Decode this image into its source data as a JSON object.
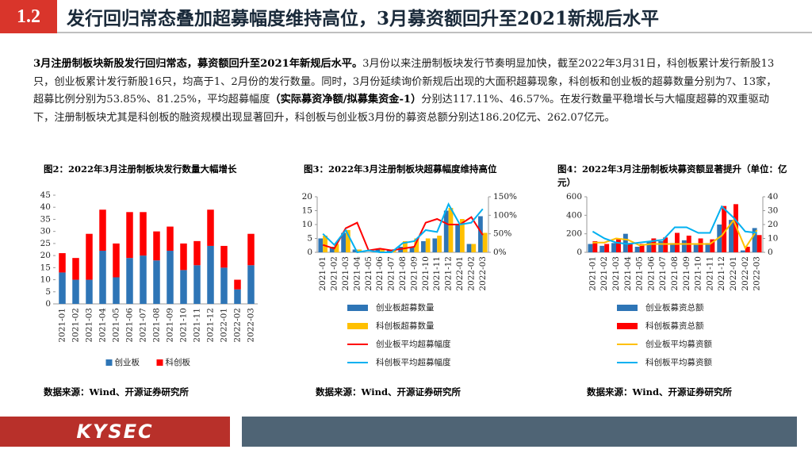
{
  "header": {
    "number": "1.2",
    "title": "发行回归常态叠加超募幅度维持高位，3月募资额回升至2021新规后水平"
  },
  "paragraph": [
    {
      "text": "3月注册制板块新股发行回归常态，募资额回升至2021年新规后水平。",
      "bold": true
    },
    {
      "text": "3月份以来注册制板块发行节奏明显加快，截至2022年3月31日，科创板累计发行新股13只，创业板累计发行新股16只，均高于1、2月份的发行数量。同时，3月份延续询价新规后出现的大面积超募现象，科创板和创业板的超募数量分别为7、13家，超募比例分别为53.85%、81.25%，平均超募幅度",
      "bold": false
    },
    {
      "text": "（实际募资净额/拟募集资金-1）",
      "bold": true
    },
    {
      "text": "分别达117.11%、46.57%。在发行数量平稳增长与大幅度超募的双重驱动下，注册制板块尤其是科创板的融资规模出现显著回升，科创板与创业板3月份的募资总额分别达186.20亿元、262.07亿元。",
      "bold": false
    }
  ],
  "chart_data": [
    {
      "type": "bar",
      "stacked": true,
      "title": "图2：2022年3月注册制板块发行数量大幅增长",
      "categories": [
        "2021-01",
        "2021-02",
        "2021-03",
        "2021-04",
        "2021-05",
        "2021-06",
        "2021-07",
        "2021-08",
        "2021-09",
        "2021-10",
        "2021-11",
        "2021-12",
        "2022-01",
        "2022-02",
        "2022-03"
      ],
      "series": [
        {
          "name": "创业板",
          "color": "#2e75b6",
          "type": "bar",
          "values": [
            13,
            10,
            10,
            22,
            11,
            19,
            20,
            18,
            22,
            14,
            16,
            24,
            15,
            6,
            16
          ]
        },
        {
          "name": "科创板",
          "color": "#ff0000",
          "type": "bar",
          "values": [
            8,
            9,
            19,
            17,
            14,
            19,
            18,
            12,
            10,
            11,
            10,
            15,
            9,
            4,
            13
          ]
        }
      ],
      "ylim": [
        0,
        45
      ],
      "yticks": [
        0,
        5,
        10,
        15,
        20,
        25,
        30,
        35,
        40,
        45
      ],
      "legend": "bottom",
      "source": "数据来源：Wind、开源证券研究所"
    },
    {
      "type": "combo",
      "title": "图3：2022年3月注册制板块超募幅度维持高位",
      "categories": [
        "2021-01",
        "2021-02",
        "2021-03",
        "2021-04",
        "2021-05",
        "2021-06",
        "2021-07",
        "2021-08",
        "2021-09",
        "2021-10",
        "2021-11",
        "2021-12",
        "2022-01",
        "2022-02",
        "2022-03"
      ],
      "series": [
        {
          "name": "创业板超募数量",
          "color": "#2e75b6",
          "type": "bar",
          "values": [
            5,
            2,
            7,
            1,
            0,
            1,
            1,
            2,
            2,
            4,
            5,
            15,
            10,
            3,
            13
          ]
        },
        {
          "name": "科创板超募数量",
          "color": "#ffc000",
          "type": "bar",
          "values": [
            6,
            3,
            8,
            1,
            0,
            1,
            1,
            4,
            5,
            5,
            6,
            16,
            12,
            3,
            7
          ]
        },
        {
          "name": "创业板平均超募幅度",
          "color": "#ff0000",
          "type": "line",
          "axis": "y2",
          "values": [
            20,
            10,
            65,
            80,
            5,
            10,
            5,
            10,
            15,
            80,
            90,
            75,
            75,
            95,
            46.57
          ]
        },
        {
          "name": "科创板平均超募幅度",
          "color": "#00b0f0",
          "type": "line",
          "axis": "y2",
          "values": [
            50,
            20,
            60,
            0,
            5,
            0,
            0,
            25,
            30,
            60,
            55,
            130,
            75,
            80,
            117.11
          ]
        }
      ],
      "ylim": [
        0,
        20
      ],
      "yticks": [
        0,
        5,
        10,
        15,
        20
      ],
      "y2lim": [
        0,
        150
      ],
      "y2ticks": [
        {
          "value": 0,
          "label": "0%"
        },
        {
          "value": 50,
          "label": "50%"
        },
        {
          "value": 100,
          "label": "100%"
        },
        {
          "value": 150,
          "label": "150%"
        }
      ],
      "legend": "bottom",
      "source": "数据来源：Wind、开源证券研究所"
    },
    {
      "type": "combo",
      "title": "图4：2022年3月注册制板块募资额显著提升（单位：亿元）",
      "categories": [
        "2021-01",
        "2021-02",
        "2021-03",
        "2021-04",
        "2021-05",
        "2021-06",
        "2021-07",
        "2021-08",
        "2021-09",
        "2021-10",
        "2021-11",
        "2021-12",
        "2022-01",
        "2022-02",
        "2022-03"
      ],
      "series": [
        {
          "name": "创业板募资总额",
          "color": "#2e75b6",
          "type": "bar",
          "values": [
            90,
            70,
            100,
            200,
            60,
            120,
            120,
            100,
            130,
            80,
            100,
            300,
            350,
            20,
            262.07
          ]
        },
        {
          "name": "科创板募资总额",
          "color": "#ff0000",
          "type": "bar",
          "values": [
            120,
            90,
            140,
            100,
            90,
            150,
            160,
            210,
            180,
            150,
            140,
            500,
            520,
            60,
            186.2
          ]
        },
        {
          "name": "创业板平均募资额",
          "color": "#ffc000",
          "type": "line",
          "axis": "y2",
          "values": [
            7,
            7,
            10,
            9,
            5,
            6,
            6,
            6,
            6,
            6,
            6,
            12,
            23,
            3,
            16
          ]
        },
        {
          "name": "科创板平均募资额",
          "color": "#00b0f0",
          "type": "line",
          "axis": "y2",
          "values": [
            15,
            10,
            7,
            6,
            7,
            8,
            9,
            18,
            18,
            14,
            14,
            33,
            25,
            15,
            14
          ]
        }
      ],
      "ylim": [
        0,
        600
      ],
      "yticks": [
        0,
        200,
        400,
        600
      ],
      "y2lim": [
        0,
        40
      ],
      "y2ticks": [
        0,
        10,
        20,
        30,
        40
      ],
      "legend": "bottom",
      "source": "数据来源：Wind、开源证券研究所"
    }
  ],
  "footer": {
    "logo": "KYSEC"
  }
}
